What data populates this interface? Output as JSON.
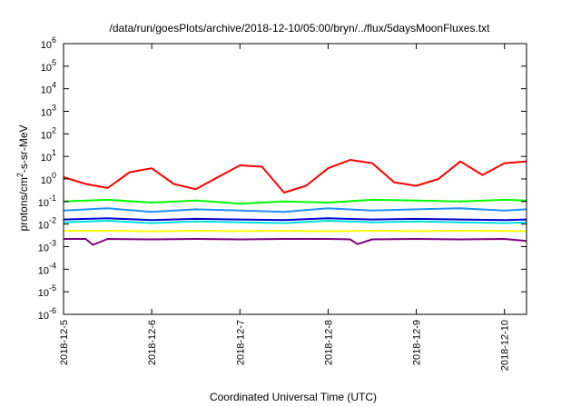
{
  "chart_data": {
    "type": "line",
    "title": "/data/run/goesPlots/archive/2018-12-10/05:00/bryn/../flux/5daysMoonFluxes.txt",
    "xlabel": "Coordinated Universal Time (UTC)",
    "ylabel": {
      "base": "protons/cm",
      "sup": "2",
      "rest": "-s-sr-MeV"
    },
    "y_scale": "log",
    "ylim": [
      1e-06,
      1000000.0
    ],
    "xlim": [
      "2018-12-05T00:00",
      "2018-12-10T06:00"
    ],
    "x_ticks": [
      "2018-12-5",
      "2018-12-6",
      "2018-12-7",
      "2018-12-8",
      "2018-12-9",
      "2018-12-10"
    ],
    "y_ticks": [
      {
        "base": "10",
        "exp": "-6"
      },
      {
        "base": "10",
        "exp": "-5"
      },
      {
        "base": "10",
        "exp": "-4"
      },
      {
        "base": "10",
        "exp": "-3"
      },
      {
        "base": "10",
        "exp": "-2"
      },
      {
        "base": "10",
        "exp": "-1"
      },
      {
        "base": "10",
        "exp": "0"
      },
      {
        "base": "10",
        "exp": "1"
      },
      {
        "base": "10",
        "exp": "2"
      },
      {
        "base": "10",
        "exp": "3"
      },
      {
        "base": "10",
        "exp": "4"
      },
      {
        "base": "10",
        "exp": "5"
      },
      {
        "base": "10",
        "exp": "6"
      }
    ],
    "grid": false,
    "legend": "none",
    "series": [
      {
        "color": "#ff0000",
        "x": [
          "2018-12-05T00:00",
          "2018-12-05T06:00",
          "2018-12-05T12:00",
          "2018-12-05T18:00",
          "2018-12-06T00:00",
          "2018-12-06T06:00",
          "2018-12-06T12:00",
          "2018-12-06T18:00",
          "2018-12-07T00:00",
          "2018-12-07T06:00",
          "2018-12-07T12:00",
          "2018-12-07T18:00",
          "2018-12-08T00:00",
          "2018-12-08T06:00",
          "2018-12-08T12:00",
          "2018-12-08T18:00",
          "2018-12-09T00:00",
          "2018-12-09T06:00",
          "2018-12-09T12:00",
          "2018-12-09T18:00",
          "2018-12-10T00:00",
          "2018-12-10T06:00"
        ],
        "values": [
          1.2,
          0.6,
          0.4,
          2.0,
          3.0,
          0.6,
          0.35,
          1.2,
          4.0,
          3.5,
          0.25,
          0.5,
          3.0,
          7.0,
          5.0,
          0.7,
          0.5,
          1.0,
          6.0,
          1.5,
          5.0,
          6.0
        ]
      },
      {
        "color": "#00ff00",
        "x": [
          "2018-12-05T00:00",
          "2018-12-05T12:00",
          "2018-12-06T00:00",
          "2018-12-06T12:00",
          "2018-12-07T00:00",
          "2018-12-07T12:00",
          "2018-12-08T00:00",
          "2018-12-08T12:00",
          "2018-12-09T00:00",
          "2018-12-09T12:00",
          "2018-12-10T00:00",
          "2018-12-10T06:00"
        ],
        "values": [
          0.1,
          0.12,
          0.09,
          0.11,
          0.08,
          0.1,
          0.09,
          0.12,
          0.11,
          0.1,
          0.12,
          0.11
        ]
      },
      {
        "color": "#1e90ff",
        "x": [
          "2018-12-05T00:00",
          "2018-12-05T12:00",
          "2018-12-06T00:00",
          "2018-12-06T12:00",
          "2018-12-07T00:00",
          "2018-12-07T12:00",
          "2018-12-08T00:00",
          "2018-12-08T12:00",
          "2018-12-09T00:00",
          "2018-12-09T12:00",
          "2018-12-10T00:00",
          "2018-12-10T06:00"
        ],
        "values": [
          0.04,
          0.05,
          0.035,
          0.045,
          0.04,
          0.035,
          0.05,
          0.04,
          0.045,
          0.05,
          0.04,
          0.045
        ]
      },
      {
        "color": "#00e0e0",
        "x": [
          "2018-12-05T00:00",
          "2018-12-05T12:00",
          "2018-12-06T00:00",
          "2018-12-06T12:00",
          "2018-12-07T00:00",
          "2018-12-07T12:00",
          "2018-12-08T00:00",
          "2018-12-08T12:00",
          "2018-12-09T00:00",
          "2018-12-09T12:00",
          "2018-12-10T00:00",
          "2018-12-10T06:00"
        ],
        "values": [
          0.012,
          0.014,
          0.011,
          0.013,
          0.012,
          0.011,
          0.014,
          0.012,
          0.013,
          0.012,
          0.011,
          0.012
        ]
      },
      {
        "color": "#0000cd",
        "x": [
          "2018-12-05T00:00",
          "2018-12-05T12:00",
          "2018-12-06T00:00",
          "2018-12-06T12:00",
          "2018-12-07T00:00",
          "2018-12-07T12:00",
          "2018-12-08T00:00",
          "2018-12-08T12:00",
          "2018-12-09T00:00",
          "2018-12-09T12:00",
          "2018-12-10T00:00",
          "2018-12-10T06:00"
        ],
        "values": [
          0.016,
          0.018,
          0.015,
          0.017,
          0.016,
          0.015,
          0.018,
          0.016,
          0.017,
          0.016,
          0.015,
          0.016
        ]
      },
      {
        "color": "#ffff00",
        "x": [
          "2018-12-05T00:00",
          "2018-12-05T12:00",
          "2018-12-06T00:00",
          "2018-12-06T12:00",
          "2018-12-07T00:00",
          "2018-12-07T12:00",
          "2018-12-08T00:00",
          "2018-12-08T12:00",
          "2018-12-09T00:00",
          "2018-12-09T12:00",
          "2018-12-10T00:00",
          "2018-12-10T06:00"
        ],
        "values": [
          0.005,
          0.005,
          0.0048,
          0.005,
          0.0049,
          0.005,
          0.0048,
          0.005,
          0.0049,
          0.005,
          0.005,
          0.0048
        ]
      },
      {
        "color": "#800080",
        "x": [
          "2018-12-05T00:00",
          "2018-12-05T06:00",
          "2018-12-05T08:00",
          "2018-12-05T12:00",
          "2018-12-06T00:00",
          "2018-12-06T12:00",
          "2018-12-07T00:00",
          "2018-12-07T12:00",
          "2018-12-08T00:00",
          "2018-12-08T06:00",
          "2018-12-08T08:00",
          "2018-12-08T12:00",
          "2018-12-09T00:00",
          "2018-12-09T12:00",
          "2018-12-10T00:00",
          "2018-12-10T06:00"
        ],
        "values": [
          0.0022,
          0.0022,
          0.0012,
          0.0022,
          0.0021,
          0.0022,
          0.0021,
          0.0022,
          0.0022,
          0.0021,
          0.0013,
          0.0021,
          0.0022,
          0.0021,
          0.0022,
          0.0018
        ]
      }
    ]
  }
}
